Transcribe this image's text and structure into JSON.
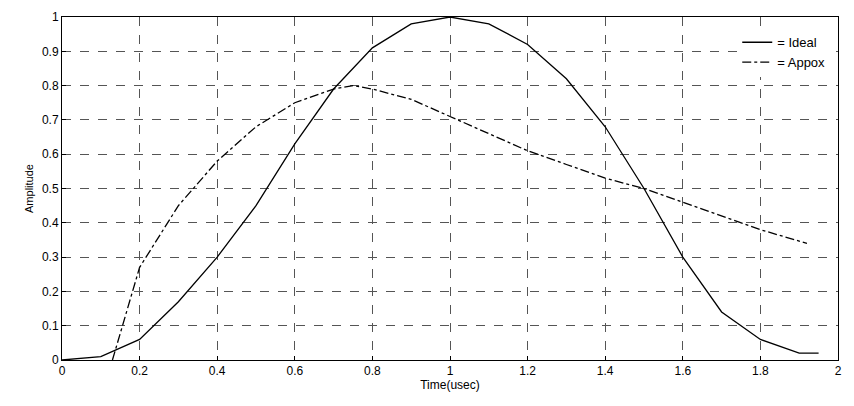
{
  "chart_data": {
    "type": "line",
    "x_label": "Time(usec)",
    "y_label": "Amplitude",
    "xlim": [
      0,
      2
    ],
    "xticks": [
      0,
      0.2,
      0.4,
      0.6,
      0.8,
      1,
      1.2,
      1.4,
      1.6,
      1.8,
      2
    ],
    "ylim": [
      0,
      1
    ],
    "yticks": [
      0,
      0.1,
      0.2,
      0.3,
      0.4,
      0.5,
      0.6,
      0.7,
      0.8,
      0.9,
      1
    ],
    "grid": true,
    "legend": "upper right",
    "series": [
      {
        "name": "= Ideal",
        "color": "#000000",
        "line_style": "solid",
        "x": [
          0,
          0.1,
          0.2,
          0.3,
          0.4,
          0.5,
          0.6,
          0.7,
          0.8,
          0.9,
          1.0,
          1.1,
          1.2,
          1.3,
          1.4,
          1.5,
          1.6,
          1.7,
          1.8,
          1.9,
          1.95
        ],
        "values": [
          0,
          0.01,
          0.06,
          0.17,
          0.3,
          0.45,
          0.63,
          0.79,
          0.91,
          0.98,
          1.0,
          0.98,
          0.92,
          0.82,
          0.68,
          0.5,
          0.3,
          0.14,
          0.06,
          0.02,
          0.02
        ]
      },
      {
        "name": "= Appox",
        "color": "#000000",
        "line_style": "dashdot",
        "x": [
          0.13,
          0.2,
          0.3,
          0.4,
          0.5,
          0.6,
          0.7,
          0.75,
          0.8,
          0.9,
          1.0,
          1.1,
          1.2,
          1.3,
          1.4,
          1.5,
          1.6,
          1.7,
          1.8,
          1.92
        ],
        "values": [
          0,
          0.27,
          0.45,
          0.58,
          0.68,
          0.75,
          0.79,
          0.8,
          0.79,
          0.76,
          0.71,
          0.66,
          0.61,
          0.57,
          0.53,
          0.5,
          0.46,
          0.42,
          0.38,
          0.34
        ]
      }
    ]
  }
}
